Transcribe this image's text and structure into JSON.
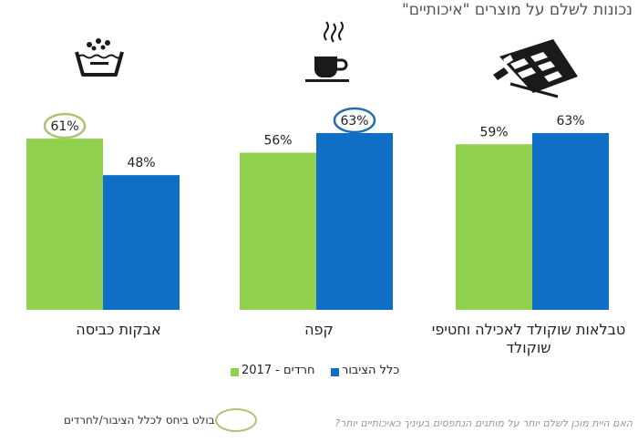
{
  "title": "נכונות לשלם על מוצרים \"איכותיים\"",
  "icons": [
    "chocolate-bar-icon",
    "coffee-cup-icon",
    "washing-symbol-icon"
  ],
  "colors": {
    "green": "#92d050",
    "blue": "#0f6fc6",
    "highlight_ring_green": "#a9c572",
    "highlight_ring_blue": "#1f6fb0"
  },
  "chart_data": {
    "type": "bar",
    "categories": [
      "טבלאות שוקולד לאכילה וחטיפי שוקולד",
      "קפה",
      "אבקות כביסה"
    ],
    "series": [
      {
        "name": "חרדים - 2017",
        "color": "#92d050",
        "values": [
          59,
          56,
          61
        ]
      },
      {
        "name": "כלל הציבור",
        "color": "#0f6fc6",
        "values": [
          63,
          63,
          48
        ]
      }
    ],
    "value_suffix": "%",
    "ylim": [
      0,
      75
    ],
    "grid": false,
    "legend_position": "bottom",
    "highlighted": [
      {
        "category": "קפה",
        "series": "כלל הציבור"
      },
      {
        "category": "אבקות כביסה",
        "series": "חרדים - 2017"
      }
    ]
  },
  "footnote": "בולט ביחס לכלל הציבור/לחרדים",
  "question": "האם היית מוכן לשלם יותר על מותגים הנתפסים בעיניך כאיכותיים יותר?"
}
